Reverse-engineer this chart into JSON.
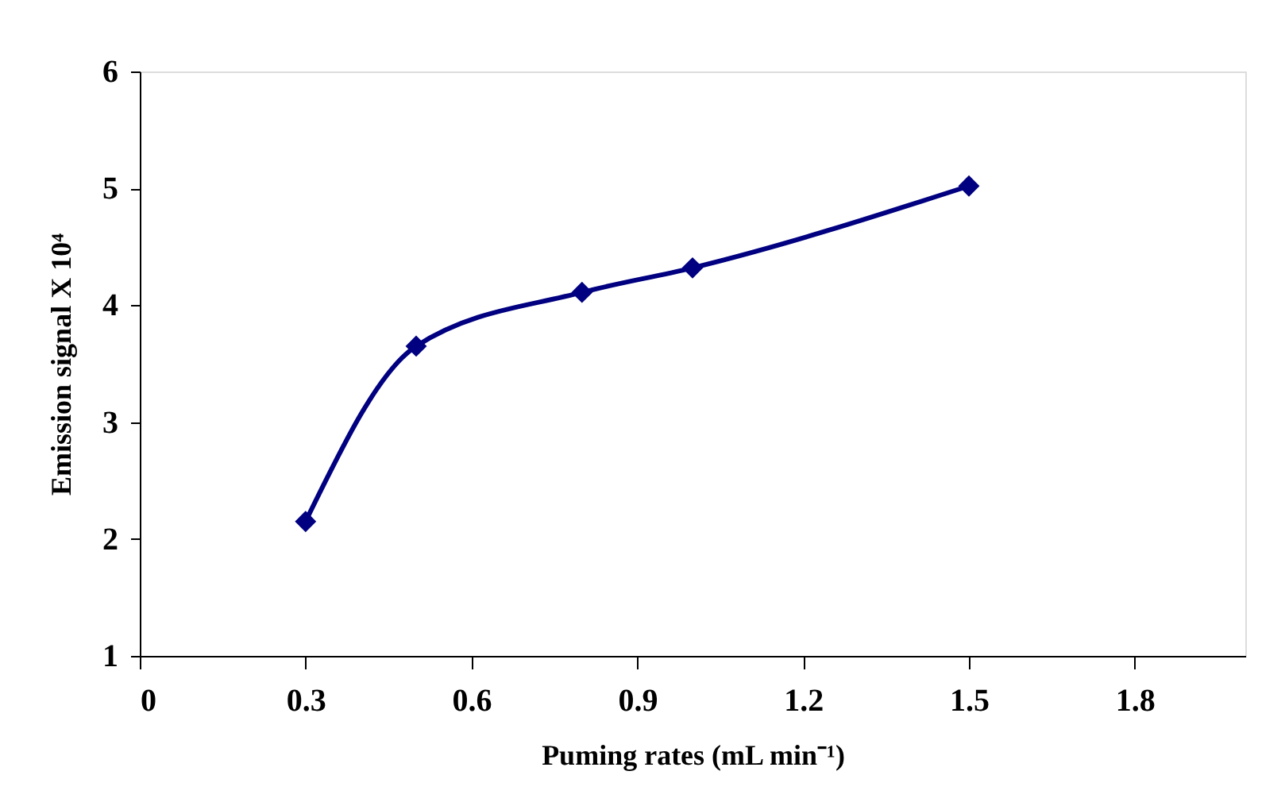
{
  "chart_data": {
    "type": "line",
    "xlabel": "Puming rates (mL min⁻¹)",
    "ylabel": "Emission signal X 10⁴",
    "x": [
      0.3,
      0.5,
      0.8,
      1.0,
      1.5
    ],
    "series": [
      {
        "color": "#000080",
        "values": [
          2.15,
          3.65,
          4.11,
          4.32,
          5.02
        ]
      }
    ],
    "xlim": [
      0,
      2.0
    ],
    "xticks": [
      0,
      0.3,
      0.6,
      0.9,
      1.2,
      1.5,
      1.8
    ],
    "ylim": [
      1,
      6
    ],
    "yticks": [
      1,
      2,
      3,
      4,
      5,
      6
    ],
    "grid": false,
    "marker": "diamond",
    "line_style": "solid"
  }
}
